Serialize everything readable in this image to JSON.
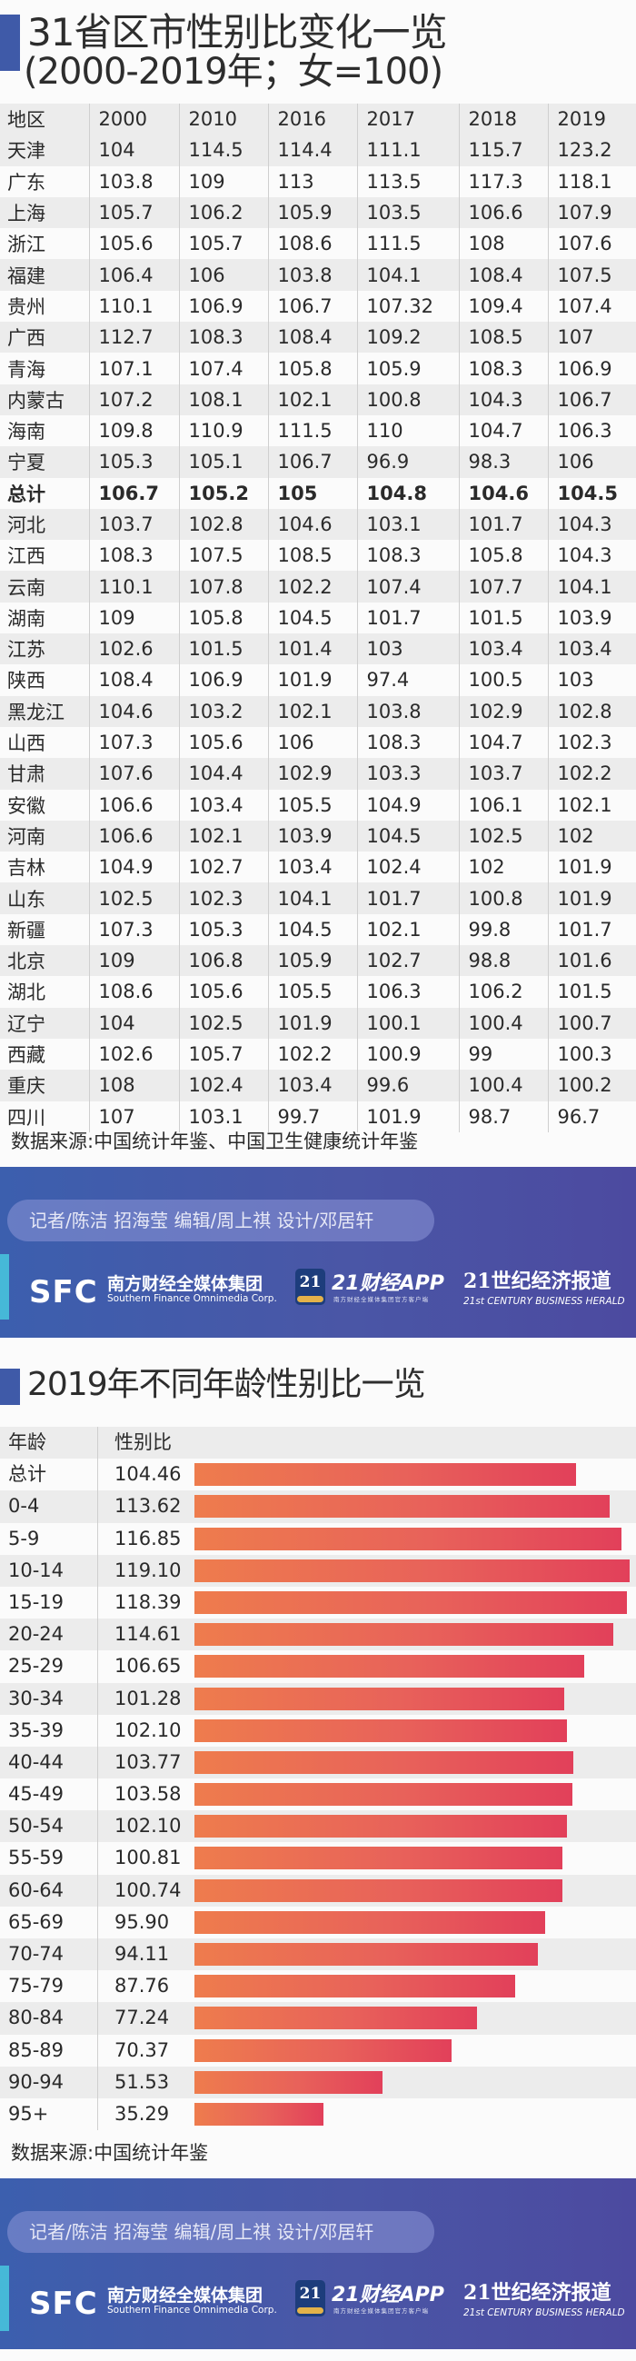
{
  "section1": {
    "title_line1": "31省区市性别比变化一览",
    "title_line2": "(2000-2019年；女=100)",
    "source": "数据来源:中国统计年鉴、中国卫生健康统计年鉴"
  },
  "section2": {
    "title": "2019年不同年龄性别比一览",
    "header_age": "年龄",
    "header_ratio": "性别比",
    "source": "数据来源:中国统计年鉴"
  },
  "banner": {
    "credits": "记者/陈洁  招海莹  编辑/周上祺  设计/邓居轩",
    "sfc_mark": "SFC",
    "sfc_cn": "南方财经全媒体集团",
    "sfc_en": "Southern Finance Omnimedia Corp.",
    "app_icon": "21",
    "app_name": "21财经APP",
    "app_sub": "南方财经全媒体集团官方客户端",
    "herald_cn": "21世纪经济报道",
    "herald_en": "21st CENTURY BUSINESS HERALD"
  },
  "colors": {
    "accent_blue": "#3f5aa8",
    "bar_start": "#ee7c4d",
    "bar_end": "#e2405a",
    "banner": "#4a56a6"
  },
  "chart_data": [
    {
      "type": "table",
      "title": "31省区市性别比变化一览 (2000-2019年；女=100)",
      "columns": [
        "地区",
        "2000",
        "2010",
        "2016",
        "2017",
        "2018",
        "2019"
      ],
      "rows": [
        [
          "天津",
          "104",
          "114.5",
          "114.4",
          "111.1",
          "115.7",
          "123.2"
        ],
        [
          "广东",
          "103.8",
          "109",
          "113",
          "113.5",
          "117.3",
          "118.1"
        ],
        [
          "上海",
          "105.7",
          "106.2",
          "105.9",
          "103.5",
          "106.6",
          "107.9"
        ],
        [
          "浙江",
          "105.6",
          "105.7",
          "108.6",
          "111.5",
          "108",
          "107.6"
        ],
        [
          "福建",
          "106.4",
          "106",
          "103.8",
          "104.1",
          "108.4",
          "107.5"
        ],
        [
          "贵州",
          "110.1",
          "106.9",
          "106.7",
          "107.32",
          "109.4",
          "107.4"
        ],
        [
          "广西",
          "112.7",
          "108.3",
          "108.4",
          "109.2",
          "108.5",
          "107"
        ],
        [
          "青海",
          "107.1",
          "107.4",
          "105.8",
          "105.9",
          "108.3",
          "106.9"
        ],
        [
          "内蒙古",
          "107.2",
          "108.1",
          "102.1",
          "100.8",
          "104.3",
          "106.7"
        ],
        [
          "海南",
          "109.8",
          "110.9",
          "111.5",
          "110",
          "104.7",
          "106.3"
        ],
        [
          "宁夏",
          "105.3",
          "105.1",
          "106.7",
          "96.9",
          "98.3",
          "106"
        ],
        [
          "总计",
          "106.7",
          "105.2",
          "105",
          "104.8",
          "104.6",
          "104.5"
        ],
        [
          "河北",
          "103.7",
          "102.8",
          "104.6",
          "103.1",
          "101.7",
          "104.3"
        ],
        [
          "江西",
          "108.3",
          "107.5",
          "108.5",
          "108.3",
          "105.8",
          "104.3"
        ],
        [
          "云南",
          "110.1",
          "107.8",
          "102.2",
          "107.4",
          "107.7",
          "104.1"
        ],
        [
          "湖南",
          "109",
          "105.8",
          "104.5",
          "101.7",
          "101.5",
          "103.9"
        ],
        [
          "江苏",
          "102.6",
          "101.5",
          "101.4",
          "103",
          "103.4",
          "103.4"
        ],
        [
          "陕西",
          "108.4",
          "106.9",
          "101.9",
          "97.4",
          "100.5",
          "103"
        ],
        [
          "黑龙江",
          "104.6",
          "103.2",
          "102.1",
          "103.8",
          "102.9",
          "102.8"
        ],
        [
          "山西",
          "107.3",
          "105.6",
          "106",
          "108.3",
          "104.7",
          "102.3"
        ],
        [
          "甘肃",
          "107.6",
          "104.4",
          "102.9",
          "103.3",
          "103.7",
          "102.2"
        ],
        [
          "安徽",
          "106.6",
          "103.4",
          "105.5",
          "104.9",
          "106.1",
          "102.1"
        ],
        [
          "河南",
          "106.6",
          "102.1",
          "103.9",
          "104.5",
          "102.5",
          "102"
        ],
        [
          "吉林",
          "104.9",
          "102.7",
          "103.4",
          "102.4",
          "102",
          "101.9"
        ],
        [
          "山东",
          "102.5",
          "102.3",
          "104.1",
          "101.7",
          "100.8",
          "101.9"
        ],
        [
          "新疆",
          "107.3",
          "105.3",
          "104.5",
          "102.1",
          "99.8",
          "101.7"
        ],
        [
          "北京",
          "109",
          "106.8",
          "105.9",
          "102.7",
          "98.8",
          "101.6"
        ],
        [
          "湖北",
          "108.6",
          "105.6",
          "105.5",
          "106.3",
          "106.2",
          "101.5"
        ],
        [
          "辽宁",
          "104",
          "102.5",
          "101.9",
          "100.1",
          "100.4",
          "100.7"
        ],
        [
          "西藏",
          "102.6",
          "105.7",
          "102.2",
          "100.9",
          "99",
          "100.3"
        ],
        [
          "重庆",
          "108",
          "102.4",
          "103.4",
          "99.6",
          "100.4",
          "100.2"
        ],
        [
          "四川",
          "107",
          "103.1",
          "99.7",
          "101.9",
          "98.7",
          "96.7"
        ]
      ],
      "bold_row": "总计"
    },
    {
      "type": "bar",
      "orientation": "horizontal",
      "title": "2019年不同年龄性别比一览",
      "xlabel": "性别比",
      "ylabel": "年龄",
      "categories": [
        "总计",
        "0-4",
        "5-9",
        "10-14",
        "15-19",
        "20-24",
        "25-29",
        "30-34",
        "35-39",
        "40-44",
        "45-49",
        "50-54",
        "55-59",
        "60-64",
        "65-69",
        "70-74",
        "75-79",
        "80-84",
        "85-89",
        "90-94",
        "95+"
      ],
      "labels": [
        "104.46",
        "113.62",
        "116.85",
        "119.10",
        "118.39",
        "114.61",
        "106.65",
        "101.28",
        "102.10",
        "103.77",
        "103.58",
        "102.10",
        "100.81",
        "100.74",
        "95.90",
        "94.11",
        "87.76",
        "77.24",
        "70.37",
        "51.53",
        "35.29"
      ],
      "values": [
        104.46,
        113.62,
        116.85,
        119.1,
        118.39,
        114.61,
        106.65,
        101.28,
        102.1,
        103.77,
        103.58,
        102.1,
        100.81,
        100.74,
        95.9,
        94.11,
        87.76,
        77.24,
        70.37,
        51.53,
        35.29
      ],
      "grid": false,
      "legend": "none"
    }
  ]
}
